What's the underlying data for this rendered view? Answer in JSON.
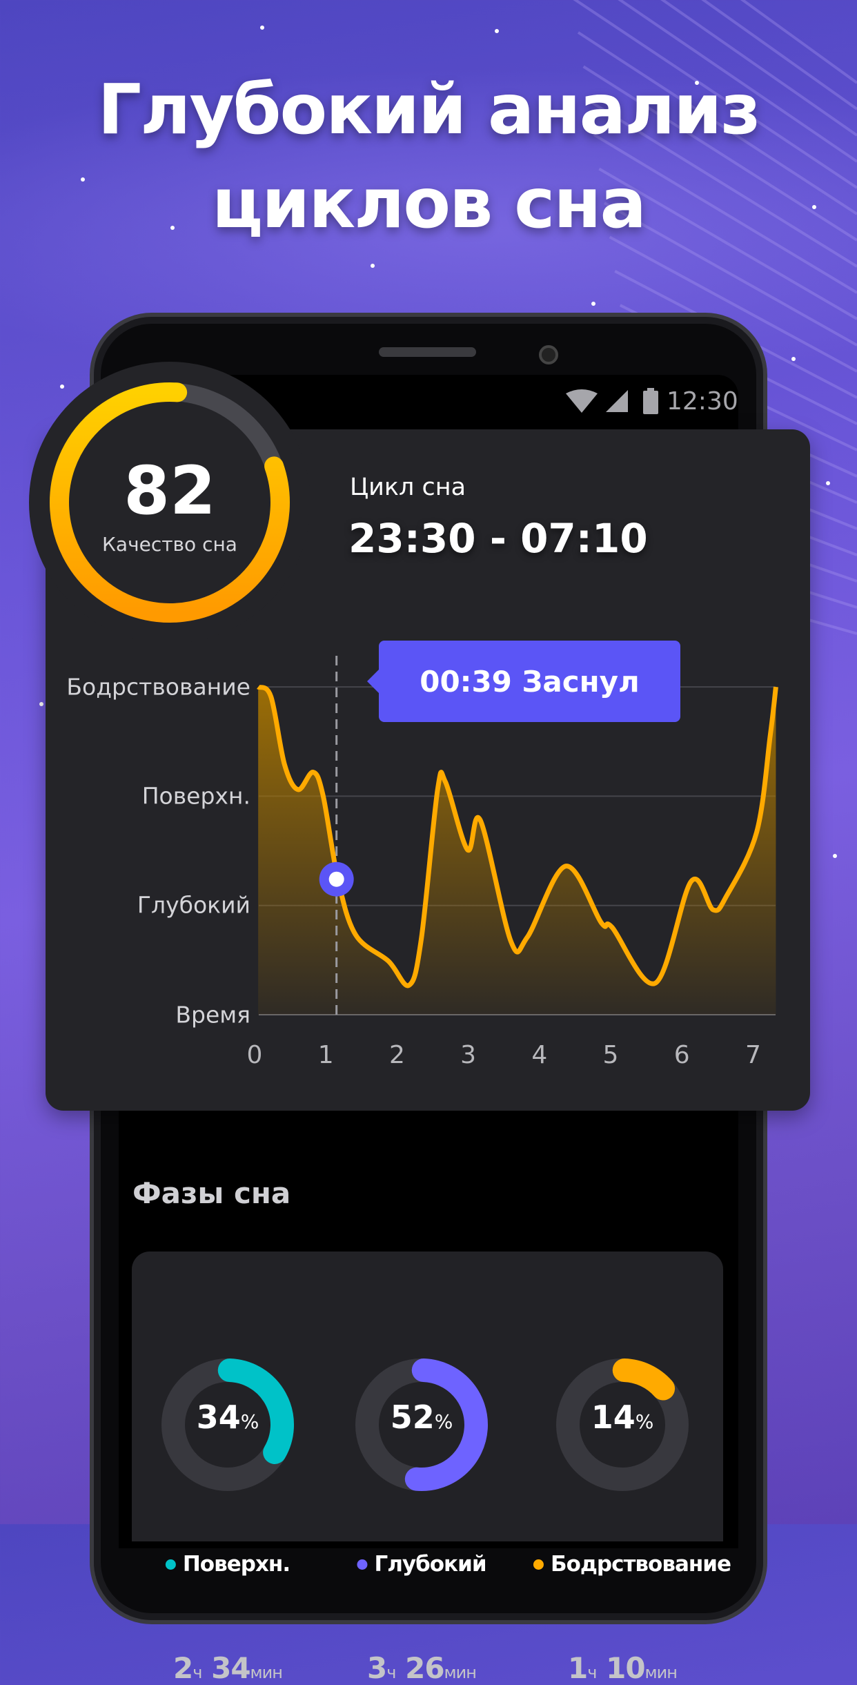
{
  "headline": {
    "line1": "Глубокий анализ",
    "line2": "циклов сна"
  },
  "status_bar": {
    "time": "12:30",
    "icons": [
      "wifi-icon",
      "signal-icon",
      "battery-icon"
    ]
  },
  "quality": {
    "value": "82",
    "label": "Качество сна",
    "fraction": 0.82
  },
  "cycle": {
    "label": "Цикл сна",
    "time_range": "23:30 - 07:10"
  },
  "tooltip": {
    "text": "00:39 Заснул"
  },
  "colors": {
    "accent": "#5b55f6",
    "orange": "#ffaa00",
    "cyan": "#00c2c8",
    "purple": "#6e63ff",
    "card": "#242428"
  },
  "chart_data": {
    "type": "area",
    "x_ticks": [
      "0",
      "1",
      "2",
      "3",
      "4",
      "5",
      "6",
      "7"
    ],
    "y_ticks": [
      "Время",
      "Глубокий",
      "Поверхн.",
      "Бодрствование"
    ],
    "xlim": [
      0,
      7.3
    ],
    "ylim": [
      0,
      3
    ],
    "grid": true,
    "marker": {
      "x": 1.15,
      "y": 1.24
    },
    "points": [
      [
        0.05,
        3.0
      ],
      [
        0.23,
        2.91
      ],
      [
        0.42,
        2.29
      ],
      [
        0.61,
        2.06
      ],
      [
        0.82,
        2.22
      ],
      [
        0.96,
        2.01
      ],
      [
        1.17,
        1.24
      ],
      [
        1.42,
        0.73
      ],
      [
        1.88,
        0.49
      ],
      [
        2.17,
        0.27
      ],
      [
        2.34,
        0.69
      ],
      [
        2.57,
        2.06
      ],
      [
        2.68,
        2.13
      ],
      [
        2.99,
        1.51
      ],
      [
        3.17,
        1.78
      ],
      [
        3.6,
        0.67
      ],
      [
        3.83,
        0.71
      ],
      [
        4.37,
        1.36
      ],
      [
        4.87,
        0.84
      ],
      [
        5.02,
        0.8
      ],
      [
        5.63,
        0.29
      ],
      [
        6.13,
        1.22
      ],
      [
        6.44,
        0.96
      ],
      [
        6.63,
        1.09
      ],
      [
        7.05,
        1.67
      ],
      [
        7.24,
        2.55
      ],
      [
        7.32,
        3.0
      ]
    ]
  },
  "phases": {
    "title": "Фазы сна",
    "items": [
      {
        "name": "Поверхн.",
        "percent": "34",
        "fraction": 0.34,
        "color": "#00c2c8",
        "h": "2",
        "h_unit": "ч",
        "m": " 34",
        "m_unit": "мин"
      },
      {
        "name": "Глубокий",
        "percent": "52",
        "fraction": 0.52,
        "color": "#6e63ff",
        "h": "3",
        "h_unit": "ч",
        "m": " 26",
        "m_unit": "мин"
      },
      {
        "name": "Бодрствование",
        "percent": "14",
        "fraction": 0.14,
        "color": "#ffaa00",
        "h": "1",
        "h_unit": "ч",
        "m": " 10",
        "m_unit": "мин"
      }
    ],
    "percent_sign": "%"
  }
}
